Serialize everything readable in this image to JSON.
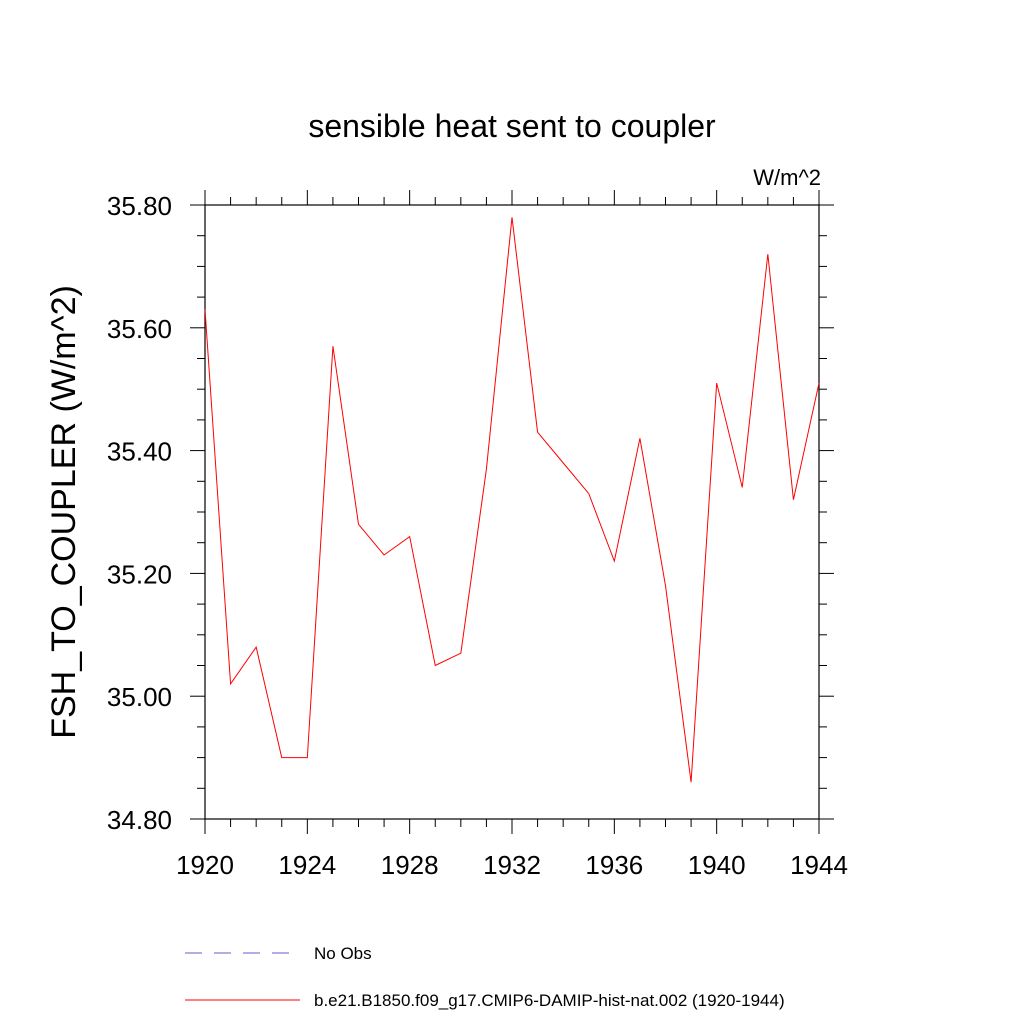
{
  "chart_data": {
    "type": "line",
    "title": "sensible heat sent to coupler",
    "units": "W/m^2",
    "ylabel": "FSH_TO_COUPLER  (W/m^2)",
    "xlabel": "",
    "xlim": [
      1920,
      1944
    ],
    "ylim": [
      34.8,
      35.8
    ],
    "xticks": [
      1920,
      1924,
      1928,
      1932,
      1936,
      1940,
      1944
    ],
    "xtick_labels": [
      "1920",
      "1924",
      "1928",
      "1932",
      "1936",
      "1940",
      "1944"
    ],
    "yticks": [
      34.8,
      35.0,
      35.2,
      35.4,
      35.6,
      35.8
    ],
    "ytick_labels": [
      "34.80",
      "35.00",
      "35.20",
      "35.40",
      "35.60",
      "35.80"
    ],
    "grid": false,
    "legend_position": "bottom",
    "series": [
      {
        "name": "No Obs",
        "color": "#6a5acd",
        "dash": "dashed",
        "x": [],
        "y": []
      },
      {
        "name": "b.e21.B1850.f09_g17.CMIP6-DAMIP-hist-nat.002 (1920-1944)",
        "color": "#ff0000",
        "dash": "solid",
        "x": [
          1920,
          1921,
          1922,
          1923,
          1924,
          1925,
          1926,
          1927,
          1928,
          1929,
          1930,
          1931,
          1932,
          1933,
          1934,
          1935,
          1936,
          1937,
          1938,
          1939,
          1940,
          1941,
          1942,
          1943,
          1944
        ],
        "y": [
          35.63,
          35.02,
          35.08,
          34.9,
          34.9,
          35.57,
          35.28,
          35.23,
          35.26,
          35.05,
          35.07,
          35.37,
          35.78,
          35.43,
          35.38,
          35.33,
          35.22,
          35.42,
          35.18,
          34.86,
          35.51,
          35.34,
          35.72,
          35.32,
          35.51
        ]
      }
    ]
  }
}
